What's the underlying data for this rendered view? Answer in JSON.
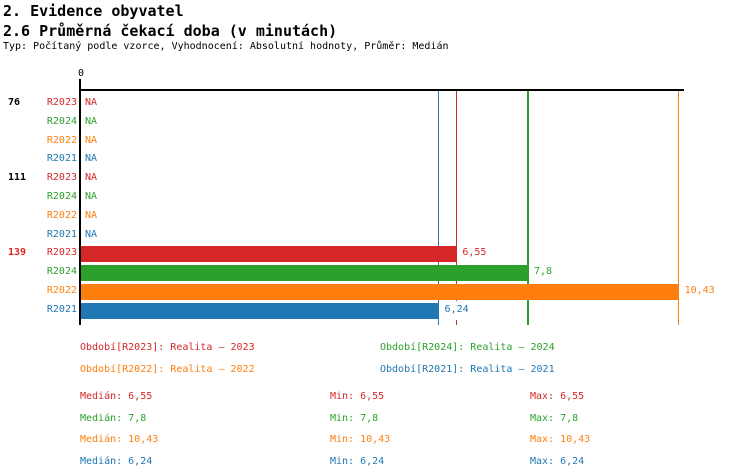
{
  "header": {
    "title1": "2. Evidence obyvatel",
    "title2": "2.6 Průměrná čekací doba (v minutách)",
    "subtitle": "Typ: Počítaný podle vzorce, Vyhodnocení: Absolutní hodnoty, Průměr: Medián"
  },
  "colors": {
    "R2023": "#d62728",
    "R2024": "#2ca02c",
    "R2022": "#ff7f0e",
    "R2021": "#1f77b4",
    "axis": "#000000",
    "group_label_default": "#000000",
    "group_label_highlight": "#d62728",
    "background": "#ffffff"
  },
  "chart_data": {
    "type": "bar",
    "orientation": "horizontal",
    "title": "2.6 Průměrná čekací doba (v minutách)",
    "x_axis": {
      "zero_label": "0",
      "min": 0,
      "max_visible": 10.52,
      "gridlines": false
    },
    "series_order": [
      "R2023",
      "R2024",
      "R2022",
      "R2021"
    ],
    "groups": [
      {
        "label": "76",
        "label_color": "#000000",
        "rows": [
          {
            "series": "R2023",
            "value": null,
            "display": "NA"
          },
          {
            "series": "R2024",
            "value": null,
            "display": "NA"
          },
          {
            "series": "R2022",
            "value": null,
            "display": "NA"
          },
          {
            "series": "R2021",
            "value": null,
            "display": "NA"
          }
        ]
      },
      {
        "label": "111",
        "label_color": "#000000",
        "rows": [
          {
            "series": "R2023",
            "value": null,
            "display": "NA"
          },
          {
            "series": "R2024",
            "value": null,
            "display": "NA"
          },
          {
            "series": "R2022",
            "value": null,
            "display": "NA"
          },
          {
            "series": "R2021",
            "value": null,
            "display": "NA"
          }
        ]
      },
      {
        "label": "139",
        "label_color": "#d62728",
        "rows": [
          {
            "series": "R2023",
            "value": 6.55,
            "display": "6,55"
          },
          {
            "series": "R2024",
            "value": 7.8,
            "display": "7,8"
          },
          {
            "series": "R2022",
            "value": 10.43,
            "display": "10,43"
          },
          {
            "series": "R2021",
            "value": 6.24,
            "display": "6,24"
          }
        ]
      }
    ],
    "reference_lines": [
      {
        "series": "R2021",
        "value": 6.24
      },
      {
        "series": "R2023",
        "value": 6.55
      },
      {
        "series": "R2024",
        "value": 7.8
      },
      {
        "series": "R2022",
        "value": 10.43
      }
    ]
  },
  "legend": {
    "items": [
      {
        "series": "R2023",
        "text": "Období[R2023]: Realita – 2023"
      },
      {
        "series": "R2024",
        "text": "Období[R2024]: Realita – 2024"
      },
      {
        "series": "R2022",
        "text": "Období[R2022]: Realita – 2022"
      },
      {
        "series": "R2021",
        "text": "Období[R2021]: Realita – 2021"
      }
    ]
  },
  "stats": {
    "rows": [
      {
        "series": "R2023",
        "median": "Medián: 6,55",
        "min": "Min: 6,55",
        "max": "Max: 6,55"
      },
      {
        "series": "R2024",
        "median": "Medián: 7,8",
        "min": "Min: 7,8",
        "max": "Max: 7,8"
      },
      {
        "series": "R2022",
        "median": "Medián: 10,43",
        "min": "Min: 10,43",
        "max": "Max: 10,43"
      },
      {
        "series": "R2021",
        "median": "Medián: 6,24",
        "min": "Min: 6,24",
        "max": "Max: 6,24"
      }
    ]
  }
}
